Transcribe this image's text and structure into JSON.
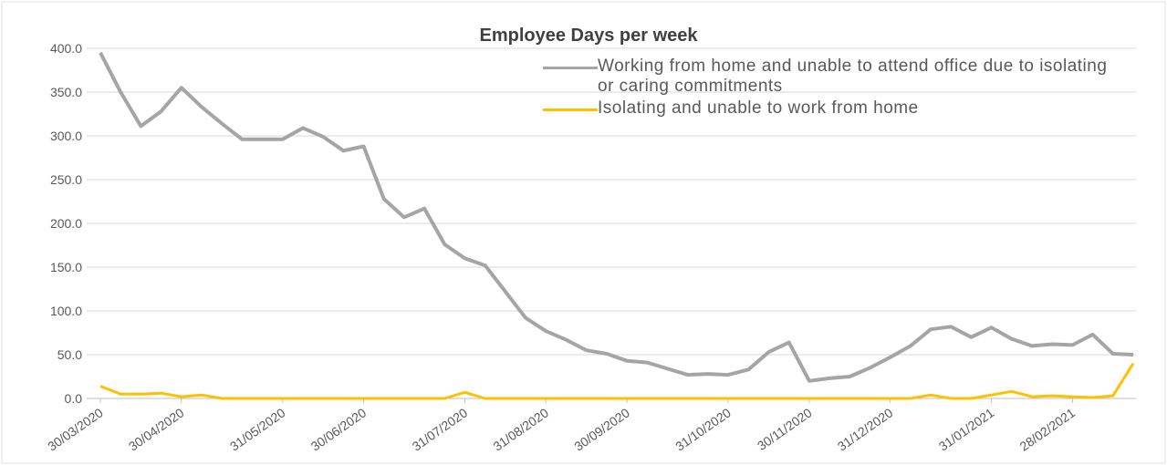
{
  "chart_data": {
    "type": "line",
    "title": "Employee Days per week",
    "categories": [
      "30/03/2020",
      null,
      null,
      null,
      "30/04/2020",
      null,
      null,
      null,
      null,
      "31/05/2020",
      null,
      null,
      null,
      "30/06/2020",
      null,
      null,
      null,
      null,
      "31/07/2020",
      null,
      null,
      null,
      "31/08/2020",
      null,
      null,
      null,
      "30/09/2020",
      null,
      null,
      null,
      null,
      "31/10/2020",
      null,
      null,
      null,
      "30/11/2020",
      null,
      null,
      null,
      "31/12/2020",
      null,
      null,
      null,
      null,
      "31/01/2021",
      null,
      null,
      null,
      "28/02/2021",
      null,
      null,
      null
    ],
    "series": [
      {
        "name": "Working from home and unable to attend office due to isolating or caring commitments",
        "color": "#a5a5a5",
        "values": [
          395,
          350,
          311,
          328,
          355,
          333,
          314,
          296,
          296,
          296,
          309,
          299,
          283,
          288,
          228,
          207,
          217,
          176,
          160,
          152,
          122,
          92,
          77,
          67,
          55,
          51,
          43,
          41,
          34,
          27,
          28,
          27,
          33,
          53,
          64,
          20,
          23,
          25,
          35,
          47,
          60,
          79,
          82,
          70,
          81,
          68,
          60,
          62,
          61,
          73,
          51,
          50
        ]
      },
      {
        "name": "Isolating and unable to work from home",
        "color": "#ffc000",
        "values": [
          14,
          5,
          5,
          6,
          2,
          4,
          0,
          0,
          0,
          0,
          0,
          0,
          0,
          0,
          0,
          0,
          0,
          0,
          7,
          0,
          0,
          0,
          0,
          0,
          0,
          0,
          0,
          0,
          0,
          0,
          0,
          0,
          0,
          0,
          0,
          0,
          0,
          0,
          0,
          0,
          0,
          4,
          0,
          0,
          4,
          8,
          2,
          3,
          2,
          1,
          3,
          40
        ]
      }
    ],
    "ylim": [
      0,
      400
    ],
    "yticks": [
      {
        "value": 0,
        "label": "0.0"
      },
      {
        "value": 50,
        "label": "50.0"
      },
      {
        "value": 100,
        "label": "100.0"
      },
      {
        "value": 150,
        "label": "150.0"
      },
      {
        "value": 200,
        "label": "200.0"
      },
      {
        "value": 250,
        "label": "250.0"
      },
      {
        "value": 300,
        "label": "300.0"
      },
      {
        "value": 350,
        "label": "350.0"
      },
      {
        "value": 400,
        "label": "400.0"
      }
    ],
    "grid": true
  }
}
